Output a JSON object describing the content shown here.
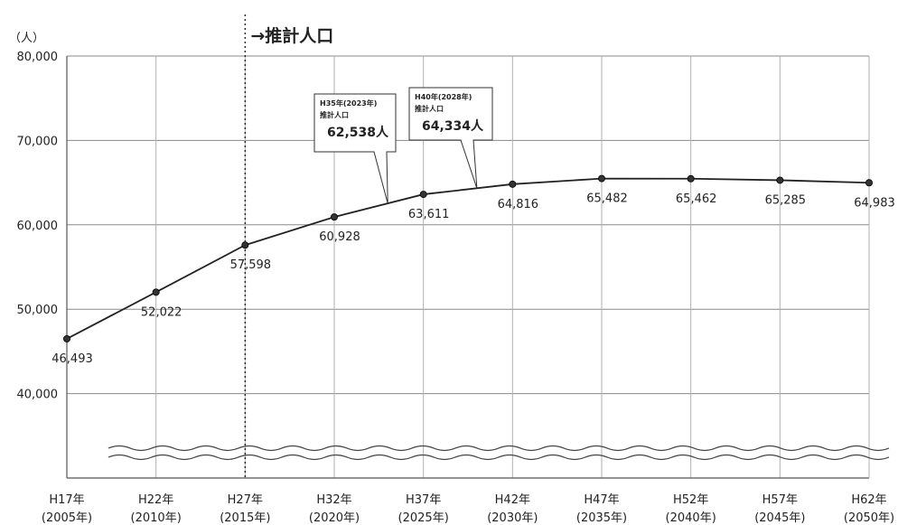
{
  "chart_data": {
    "type": "line",
    "unit_label": "（人）",
    "projection_label": "→推計人口",
    "projection_start_index": 2,
    "categories": [
      {
        "era": "H17年",
        "year": "(2005年)"
      },
      {
        "era": "H22年",
        "year": "(2010年)"
      },
      {
        "era": "H27年",
        "year": "(2015年)"
      },
      {
        "era": "H32年",
        "year": "(2020年)"
      },
      {
        "era": "H37年",
        "year": "(2025年)"
      },
      {
        "era": "H42年",
        "year": "(2030年)"
      },
      {
        "era": "H47年",
        "year": "(2035年)"
      },
      {
        "era": "H52年",
        "year": "(2040年)"
      },
      {
        "era": "H57年",
        "year": "(2045年)"
      },
      {
        "era": "H62年",
        "year": "(2050年)"
      }
    ],
    "values": [
      46493,
      52022,
      57598,
      60928,
      63611,
      64816,
      65482,
      65462,
      65285,
      64983
    ],
    "value_labels": [
      "46,493",
      "52,022",
      "57,598",
      "60,928",
      "63,611",
      "64,816",
      "65,482",
      "65,462",
      "65,285",
      "64,983"
    ],
    "ylim": [
      30000,
      80000
    ],
    "yticks": [
      40000,
      50000,
      60000,
      70000,
      80000
    ],
    "ytick_labels": [
      "40,000",
      "50,000",
      "60,000",
      "70,000",
      "80,000"
    ],
    "axis_break": true,
    "grid": true,
    "line_color": "#222222",
    "callouts": [
      {
        "line1": "H35年(2023年)",
        "line2": "推計人口",
        "value": "62,538人",
        "x_index": 3.6,
        "y": 62538
      },
      {
        "line1": "H40年(2028年)",
        "line2": "推計人口",
        "value": "64,334人",
        "x_index": 4.6,
        "y": 64334
      }
    ]
  }
}
